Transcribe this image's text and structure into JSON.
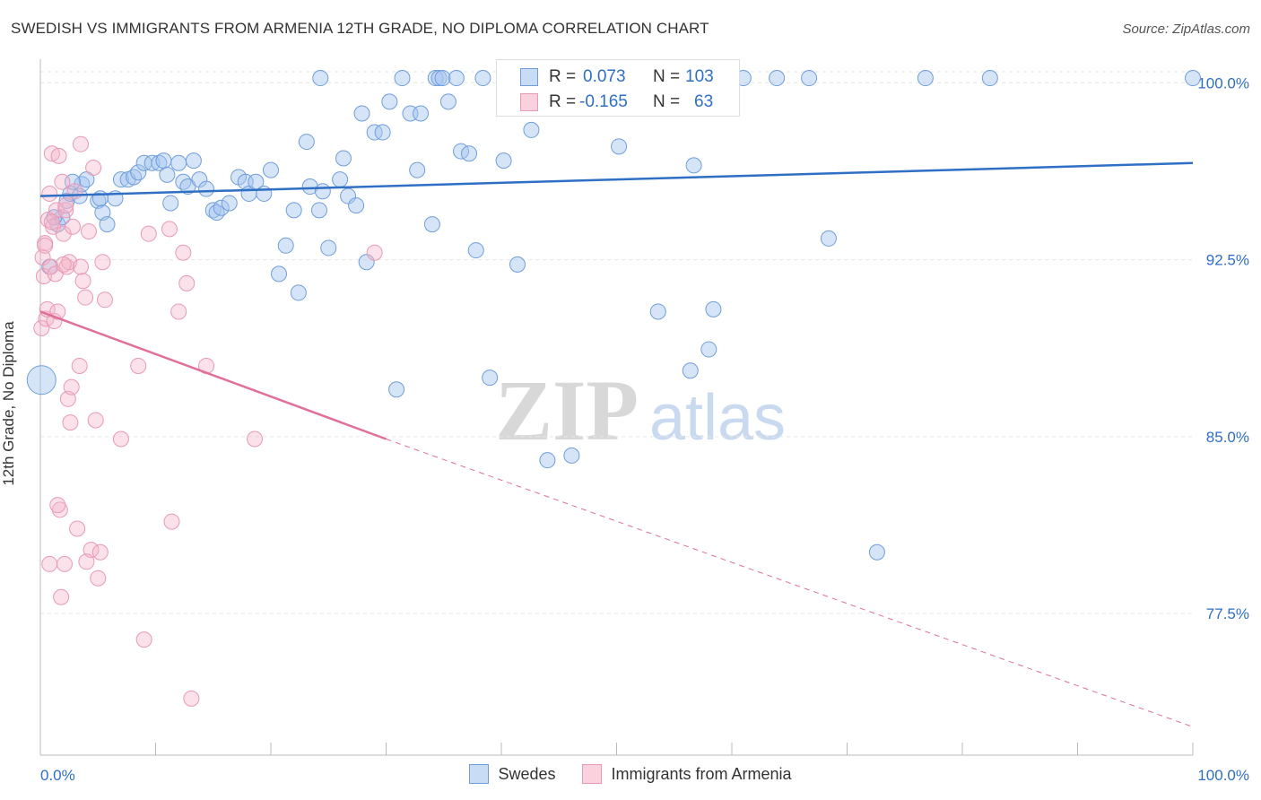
{
  "title": "SWEDISH VS IMMIGRANTS FROM ARMENIA 12TH GRADE, NO DIPLOMA CORRELATION CHART",
  "source": "Source: ZipAtlas.com",
  "watermark": {
    "zip": "ZIP",
    "atlas": "atlas"
  },
  "colors": {
    "blue": "#2f6fc4",
    "blue_fill": "rgba(164,196,240,0.45)",
    "blue_stroke": "#6f9edb",
    "pink": "#e0709a",
    "pink_fill": "rgba(245,180,200,0.40)",
    "pink_stroke": "#e89ab5"
  },
  "stats": {
    "r_label": "R =",
    "n_label": "N =",
    "swedes": {
      "r": "0.073",
      "n": "103"
    },
    "armenia": {
      "r": "-0.165",
      "n": "63"
    }
  },
  "legend": {
    "swedes": "Swedes",
    "armenia": "Immigrants from Armenia"
  },
  "chart_data": {
    "type": "scatter",
    "xlabel": "",
    "ylabel": "12th Grade, No Diploma",
    "xlim": [
      0,
      100
    ],
    "ylim": [
      71.5,
      101
    ],
    "x_tick_labels": [
      {
        "value": 0,
        "label": "0.0%"
      },
      {
        "value": 100,
        "label": "100.0%"
      }
    ],
    "y_tick_labels": [
      {
        "value": 100,
        "label": "100.0%"
      },
      {
        "value": 92.5,
        "label": "92.5%"
      },
      {
        "value": 85,
        "label": "85.0%"
      },
      {
        "value": 77.5,
        "label": "77.5%"
      }
    ],
    "grid": true,
    "legend_position": "bottom",
    "series": [
      {
        "name": "Swedes",
        "trend": {
          "x": [
            0,
            100
          ],
          "y": [
            95.2,
            96.6
          ],
          "style": "solid"
        },
        "points": [
          [
            0.1,
            87.4
          ],
          [
            0.8,
            92.2
          ],
          [
            1.5,
            94.0
          ],
          [
            1.9,
            94.3
          ],
          [
            2.3,
            95.0
          ],
          [
            2.6,
            95.3
          ],
          [
            3.4,
            95.2
          ],
          [
            3.6,
            95.7
          ],
          [
            4.0,
            95.9
          ],
          [
            5.0,
            95.0
          ],
          [
            5.4,
            94.5
          ],
          [
            5.8,
            94.0
          ],
          [
            6.5,
            95.1
          ],
          [
            7.0,
            95.9
          ],
          [
            7.6,
            95.9
          ],
          [
            8.1,
            96.0
          ],
          [
            8.5,
            96.2
          ],
          [
            9.0,
            96.6
          ],
          [
            9.7,
            96.6
          ],
          [
            10.3,
            96.6
          ],
          [
            10.7,
            96.7
          ],
          [
            11.0,
            96.1
          ],
          [
            11.3,
            94.9
          ],
          [
            12.0,
            96.6
          ],
          [
            12.4,
            95.8
          ],
          [
            12.8,
            95.6
          ],
          [
            13.3,
            96.7
          ],
          [
            13.8,
            95.9
          ],
          [
            14.4,
            95.5
          ],
          [
            15.0,
            94.6
          ],
          [
            15.3,
            94.5
          ],
          [
            15.7,
            94.7
          ],
          [
            16.4,
            94.9
          ],
          [
            17.2,
            96.0
          ],
          [
            17.8,
            95.8
          ],
          [
            18.1,
            95.3
          ],
          [
            18.7,
            95.8
          ],
          [
            19.4,
            95.3
          ],
          [
            20.0,
            96.3
          ],
          [
            20.7,
            91.9
          ],
          [
            21.3,
            93.1
          ],
          [
            22.0,
            94.6
          ],
          [
            22.4,
            91.1
          ],
          [
            23.1,
            97.5
          ],
          [
            23.4,
            95.6
          ],
          [
            24.2,
            94.6
          ],
          [
            24.5,
            95.4
          ],
          [
            25.0,
            93.0
          ],
          [
            26.0,
            95.9
          ],
          [
            26.3,
            96.8
          ],
          [
            26.7,
            95.2
          ],
          [
            27.4,
            94.8
          ],
          [
            27.9,
            98.7
          ],
          [
            28.3,
            92.4
          ],
          [
            29.0,
            97.9
          ],
          [
            29.7,
            97.9
          ],
          [
            30.3,
            99.2
          ],
          [
            30.9,
            87.0
          ],
          [
            31.4,
            100.2
          ],
          [
            32.1,
            98.7
          ],
          [
            32.7,
            96.3
          ],
          [
            33.0,
            98.7
          ],
          [
            34.0,
            94.0
          ],
          [
            34.3,
            100.2
          ],
          [
            34.6,
            100.2
          ],
          [
            34.9,
            100.2
          ],
          [
            35.4,
            99.2
          ],
          [
            36.1,
            100.2
          ],
          [
            36.5,
            97.1
          ],
          [
            37.2,
            97.0
          ],
          [
            37.8,
            92.9
          ],
          [
            39.0,
            87.5
          ],
          [
            40.2,
            96.7
          ],
          [
            40.7,
            100.2
          ],
          [
            41.4,
            92.3
          ],
          [
            41.9,
            100.2
          ],
          [
            42.6,
            98.0
          ],
          [
            42.8,
            100.2
          ],
          [
            44.0,
            84.0
          ],
          [
            46.1,
            84.2
          ],
          [
            48.2,
            100.2
          ],
          [
            49.4,
            100.2
          ],
          [
            50.2,
            97.3
          ],
          [
            53.6,
            90.3
          ],
          [
            53.9,
            100.2
          ],
          [
            56.4,
            87.8
          ],
          [
            56.7,
            96.5
          ],
          [
            58.0,
            88.7
          ],
          [
            58.4,
            90.4
          ],
          [
            61.0,
            100.2
          ],
          [
            63.9,
            100.2
          ],
          [
            66.7,
            100.2
          ],
          [
            68.4,
            93.4
          ],
          [
            72.6,
            80.1
          ],
          [
            76.8,
            100.2
          ],
          [
            82.4,
            100.2
          ],
          [
            100.0,
            100.2
          ],
          [
            24.3,
            100.2
          ],
          [
            38.4,
            100.2
          ],
          [
            45.0,
            100.2
          ],
          [
            5.2,
            95.1
          ],
          [
            1.2,
            94.3
          ],
          [
            2.8,
            95.8
          ]
        ]
      },
      {
        "name": "Immigrants from Armenia",
        "trend": {
          "x": [
            0,
            30,
            100
          ],
          "y": [
            90.3,
            84.9,
            72.7
          ],
          "solid_until": 30
        },
        "points": [
          [
            0.1,
            89.6
          ],
          [
            0.2,
            92.6
          ],
          [
            0.3,
            91.8
          ],
          [
            0.4,
            93.2
          ],
          [
            0.5,
            90.0
          ],
          [
            0.6,
            90.4
          ],
          [
            0.7,
            94.2
          ],
          [
            0.8,
            95.3
          ],
          [
            0.9,
            92.2
          ],
          [
            1.0,
            97.0
          ],
          [
            1.1,
            93.9
          ],
          [
            1.2,
            89.9
          ],
          [
            1.3,
            91.9
          ],
          [
            1.4,
            94.6
          ],
          [
            1.5,
            90.3
          ],
          [
            1.6,
            96.9
          ],
          [
            1.7,
            81.9
          ],
          [
            1.8,
            78.2
          ],
          [
            1.9,
            95.8
          ],
          [
            2.0,
            93.6
          ],
          [
            2.1,
            79.6
          ],
          [
            2.2,
            94.6
          ],
          [
            2.3,
            92.2
          ],
          [
            2.4,
            86.6
          ],
          [
            2.5,
            92.4
          ],
          [
            2.6,
            85.6
          ],
          [
            2.7,
            87.1
          ],
          [
            2.8,
            93.9
          ],
          [
            3.0,
            95.4
          ],
          [
            3.2,
            81.1
          ],
          [
            3.4,
            88.0
          ],
          [
            3.5,
            92.2
          ],
          [
            3.7,
            91.6
          ],
          [
            3.9,
            90.9
          ],
          [
            4.2,
            93.7
          ],
          [
            4.4,
            80.2
          ],
          [
            4.6,
            96.4
          ],
          [
            4.8,
            85.7
          ],
          [
            5.0,
            79.0
          ],
          [
            5.2,
            80.1
          ],
          [
            5.4,
            92.4
          ],
          [
            5.6,
            90.8
          ],
          [
            7.0,
            84.9
          ],
          [
            8.5,
            88.0
          ],
          [
            9.0,
            76.4
          ],
          [
            9.4,
            93.6
          ],
          [
            11.2,
            93.8
          ],
          [
            11.4,
            81.4
          ],
          [
            12.0,
            90.3
          ],
          [
            12.4,
            92.8
          ],
          [
            12.7,
            91.5
          ],
          [
            13.1,
            73.9
          ],
          [
            14.4,
            88.0
          ],
          [
            18.6,
            84.9
          ],
          [
            29.0,
            92.8
          ],
          [
            0.4,
            93.1
          ],
          [
            1.0,
            94.1
          ],
          [
            2.0,
            92.3
          ],
          [
            3.5,
            97.4
          ],
          [
            0.8,
            79.6
          ],
          [
            1.5,
            82.1
          ],
          [
            4.0,
            79.7
          ],
          [
            2.2,
            94.8
          ]
        ]
      }
    ]
  }
}
